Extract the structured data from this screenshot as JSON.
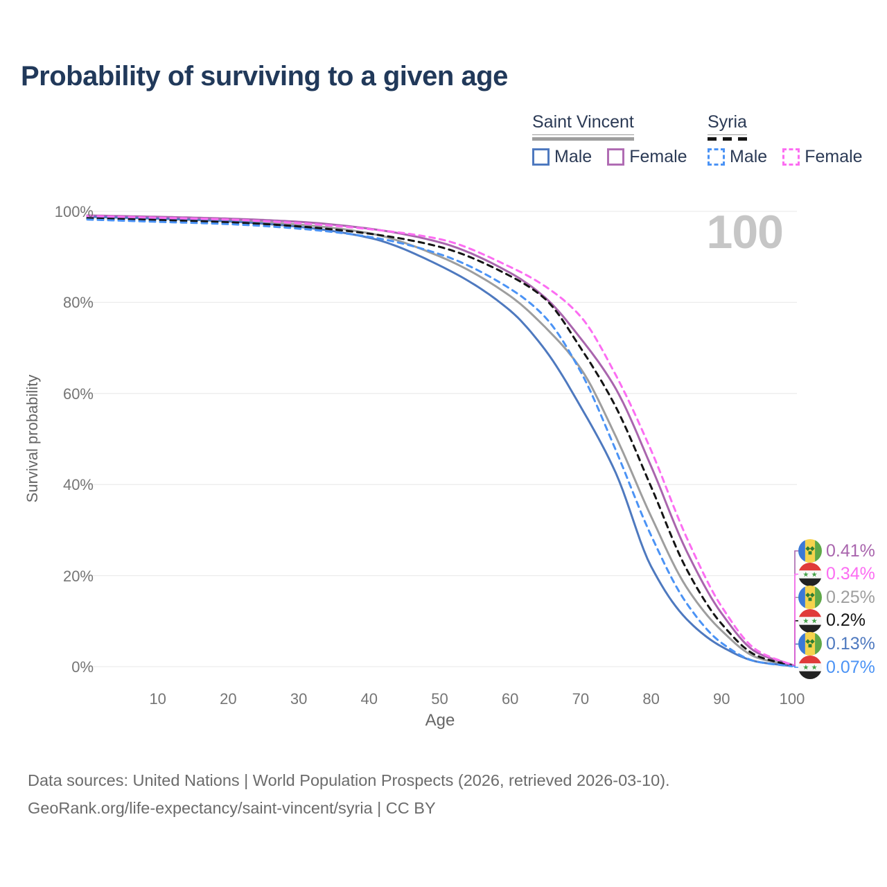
{
  "title": "Probability of surviving to a given age",
  "watermark": "100",
  "legend": {
    "groups": [
      {
        "name": "Saint Vincent",
        "line_style": "solid",
        "line_color": "#9e9e9e",
        "items": [
          {
            "label": "Male",
            "color": "#4e79bf",
            "style": "solid"
          },
          {
            "label": "Female",
            "color": "#b06cb3",
            "style": "solid"
          }
        ]
      },
      {
        "name": "Syria",
        "line_style": "dashed",
        "line_color": "#151515",
        "items": [
          {
            "label": "Male",
            "color": "#4b93f5",
            "style": "dashed"
          },
          {
            "label": "Female",
            "color": "#fc6df2",
            "style": "dashed"
          }
        ]
      }
    ]
  },
  "chart_data": {
    "type": "line",
    "title": "Probability of surviving to a given age",
    "xlabel": "Age",
    "ylabel": "Survival probability",
    "xlim": [
      0,
      100
    ],
    "ylim": [
      0,
      100
    ],
    "grid": "horizontal",
    "x_ticks": [
      10,
      20,
      30,
      40,
      50,
      60,
      70,
      80,
      90,
      100
    ],
    "y_ticks": [
      {
        "value": 100,
        "label": "100%"
      },
      {
        "value": 80,
        "label": "80%"
      },
      {
        "value": 60,
        "label": "60%"
      },
      {
        "value": 40,
        "label": "40%"
      },
      {
        "value": 20,
        "label": "20%"
      },
      {
        "value": 0,
        "label": "0%"
      }
    ],
    "x": [
      0,
      10,
      20,
      30,
      40,
      50,
      60,
      65,
      70,
      75,
      80,
      85,
      90,
      95,
      100
    ],
    "series": [
      {
        "name": "Saint Vincent — All",
        "country": "Saint Vincent",
        "group": "All",
        "color": "#9e9e9e",
        "dash": false,
        "z": 1,
        "end_label": "0.25%",
        "end_row": 2,
        "flag": "saint-vincent",
        "values": [
          98.9,
          98.6,
          98.1,
          97.1,
          95.2,
          90.1,
          81.4,
          74.5,
          65.5,
          50.5,
          33.0,
          17.5,
          7.9,
          2.0,
          0.25
        ]
      },
      {
        "name": "Saint Vincent — Female",
        "country": "Saint Vincent",
        "group": "Female",
        "color": "#a965ad",
        "dash": false,
        "z": 2,
        "end_label": "0.41%",
        "end_row": 0,
        "flag": "saint-vincent",
        "values": [
          99.1,
          98.8,
          98.4,
          97.7,
          96.2,
          93.2,
          86.5,
          81.0,
          72.1,
          61.0,
          44.0,
          25.5,
          11.7,
          3.1,
          0.41
        ]
      },
      {
        "name": "Saint Vincent — Male",
        "country": "Saint Vincent",
        "group": "Male",
        "color": "#4e79bf",
        "dash": false,
        "z": 3,
        "end_label": "0.13%",
        "end_row": 4,
        "flag": "saint-vincent",
        "values": [
          98.8,
          98.4,
          97.8,
          96.6,
          94.2,
          88.1,
          78.2,
          69.5,
          57.1,
          42.5,
          22.0,
          10.5,
          4.4,
          1.1,
          0.13
        ]
      },
      {
        "name": "Syria — All",
        "country": "Syria",
        "group": "All",
        "color": "#151515",
        "dash": true,
        "z": 4,
        "end_label": "0.2%",
        "end_row": 3,
        "flag": "syria",
        "values": [
          98.5,
          98.1,
          97.6,
          96.7,
          95.1,
          92.2,
          85.8,
          80.7,
          70.0,
          57.0,
          39.5,
          21.5,
          9.4,
          2.4,
          0.2
        ]
      },
      {
        "name": "Syria — Male",
        "country": "Syria",
        "group": "Male",
        "color": "#4b93f5",
        "dash": true,
        "z": 5,
        "end_label": "0.07%",
        "end_row": 5,
        "flag": "syria",
        "values": [
          98.2,
          97.7,
          97.2,
          96.2,
          94.4,
          90.6,
          83.0,
          76.7,
          64.8,
          47.5,
          28.8,
          14.0,
          5.2,
          1.1,
          0.07
        ]
      },
      {
        "name": "Syria — Female",
        "country": "Syria",
        "group": "Female",
        "color": "#fc6df2",
        "dash": true,
        "z": 6,
        "end_label": "0.34%",
        "end_row": 1,
        "flag": "syria",
        "values": [
          99.0,
          98.6,
          98.2,
          97.4,
          96.1,
          93.9,
          87.8,
          83.5,
          76.9,
          64.0,
          47.5,
          28.5,
          13.2,
          3.6,
          0.34
        ]
      }
    ],
    "legend_position": "top-right"
  },
  "flags": {
    "saint-vincent": {
      "blue": "#3b79d6",
      "yellow": "#f5d34d",
      "green": "#5fa848",
      "diamond": "#2e7d32"
    },
    "syria": {
      "red": "#e03a3a",
      "white": "#f7f7f7",
      "black": "#222222",
      "star": "#44a147"
    }
  },
  "footer": {
    "line1": "Data sources: United Nations | World Population Prospects (2026, retrieved 2026-03-10).",
    "line2": "GeoRank.org/life-expectancy/saint-vincent/syria | CC BY"
  }
}
